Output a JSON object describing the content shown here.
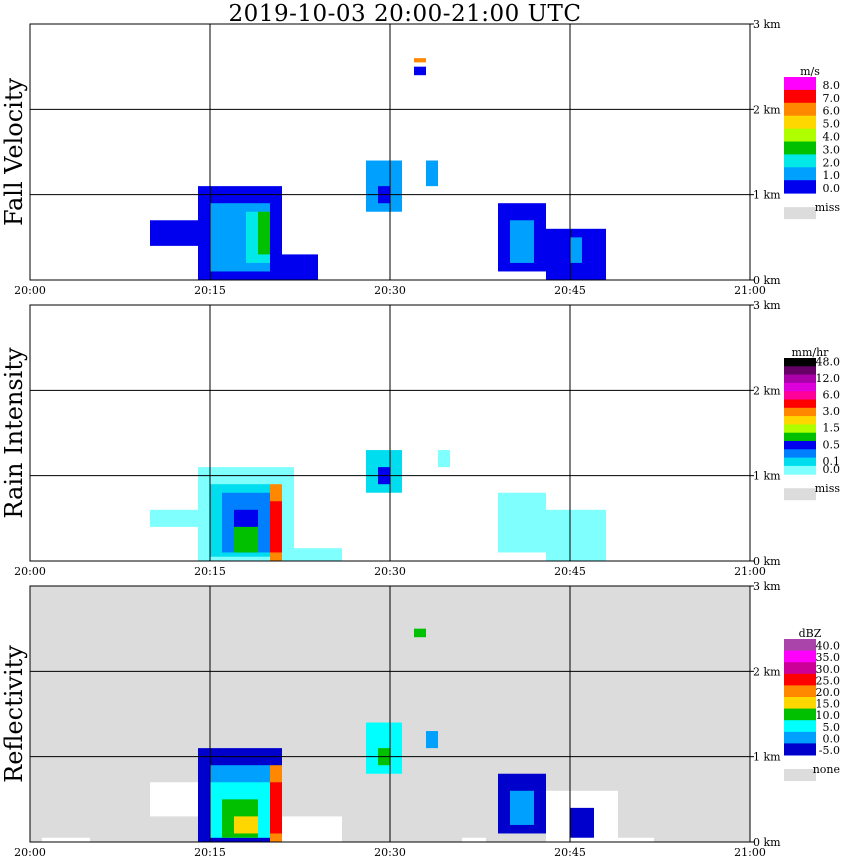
{
  "title": "2019-10-03   20:00-21:00 UTC",
  "colors": {
    "frame": "#000000",
    "missing_fill": "#dcdcdc"
  },
  "chart_data": [
    {
      "type": "heatmap",
      "ylabel": "Fall Velocity",
      "x_ticks": [
        "20:00",
        "20:15",
        "20:30",
        "20:45",
        "21:00"
      ],
      "y_ticks": [
        "0 km",
        "1 km",
        "2 km",
        "3 km"
      ],
      "xlim": [
        "20:00",
        "21:00"
      ],
      "ylim_km": [
        0,
        3.0
      ],
      "grid": true,
      "background": "#ffffff",
      "legend": {
        "unit": "m/s",
        "labels": [
          "8.0",
          "7.0",
          "6.0",
          "5.0",
          "4.0",
          "3.0",
          "2.0",
          "1.0",
          "0.0"
        ],
        "colors": [
          "#ff00ff",
          "#ff0000",
          "#ff8800",
          "#ffd700",
          "#b0ff00",
          "#00c000",
          "#00e8e8",
          "#00a0ff",
          "#0000ee"
        ],
        "missing_label": "miss"
      },
      "echoes": [
        {
          "x0": "20:10",
          "x1": "20:14",
          "y0": 0.4,
          "y1": 0.7,
          "color": "#0000ee"
        },
        {
          "x0": "20:14",
          "x1": "20:21",
          "y0": 0.0,
          "y1": 1.1,
          "color": "#0000ee"
        },
        {
          "x0": "20:15",
          "x1": "20:20",
          "y0": 0.1,
          "y1": 0.9,
          "color": "#00a0ff"
        },
        {
          "x0": "20:18",
          "x1": "20:20",
          "y0": 0.2,
          "y1": 0.8,
          "color": "#00e8e8"
        },
        {
          "x0": "20:19",
          "x1": "20:20",
          "y0": 0.3,
          "y1": 0.8,
          "color": "#00c000"
        },
        {
          "x0": "20:21",
          "x1": "20:24",
          "y0": 0.0,
          "y1": 0.3,
          "color": "#0000ee"
        },
        {
          "x0": "20:28",
          "x1": "20:31",
          "y0": 0.8,
          "y1": 1.4,
          "color": "#00a0ff"
        },
        {
          "x0": "20:29",
          "x1": "20:30",
          "y0": 0.9,
          "y1": 1.1,
          "color": "#0000ee"
        },
        {
          "x0": "20:33",
          "x1": "20:34",
          "y0": 1.1,
          "y1": 1.4,
          "color": "#00a0ff"
        },
        {
          "x0": "20:32",
          "x1": "20:33",
          "y0": 2.4,
          "y1": 2.5,
          "color": "#0000ee"
        },
        {
          "x0": "20:32",
          "x1": "20:33",
          "y0": 2.55,
          "y1": 2.6,
          "color": "#ff8800"
        },
        {
          "x0": "20:39",
          "x1": "20:43",
          "y0": 0.1,
          "y1": 0.9,
          "color": "#0000ee"
        },
        {
          "x0": "20:40",
          "x1": "20:42",
          "y0": 0.2,
          "y1": 0.7,
          "color": "#00a0ff"
        },
        {
          "x0": "20:43",
          "x1": "20:48",
          "y0": 0.0,
          "y1": 0.6,
          "color": "#0000ee"
        },
        {
          "x0": "20:45",
          "x1": "20:46",
          "y0": 0.2,
          "y1": 0.5,
          "color": "#00a0ff"
        }
      ]
    },
    {
      "type": "heatmap",
      "ylabel": "Rain Intensity",
      "x_ticks": [
        "20:00",
        "20:15",
        "20:30",
        "20:45",
        "21:00"
      ],
      "y_ticks": [
        "0 km",
        "1 km",
        "2 km",
        "3 km"
      ],
      "xlim": [
        "20:00",
        "21:00"
      ],
      "ylim_km": [
        0,
        3.0
      ],
      "grid": true,
      "background": "#ffffff",
      "legend": {
        "unit": "mm/hr",
        "labels": [
          "48.0",
          "",
          "12.0",
          "",
          "6.0",
          "",
          "3.0",
          "",
          "1.5",
          "",
          "0.5",
          "",
          "0.1",
          "0.0"
        ],
        "colors": [
          "#000000",
          "#660066",
          "#aa00aa",
          "#dd00dd",
          "#ff0099",
          "#ff0000",
          "#ff8800",
          "#ffd700",
          "#b0ff00",
          "#00c000",
          "#0000ee",
          "#0080ff",
          "#00ddee",
          "#80ffff"
        ],
        "missing_label": "miss"
      },
      "echoes": [
        {
          "x0": "20:10",
          "x1": "20:14",
          "y0": 0.4,
          "y1": 0.6,
          "color": "#80ffff"
        },
        {
          "x0": "20:14",
          "x1": "20:22",
          "y0": 0.0,
          "y1": 1.1,
          "color": "#80ffff"
        },
        {
          "x0": "20:15",
          "x1": "20:20",
          "y0": 0.05,
          "y1": 0.9,
          "color": "#00ddee"
        },
        {
          "x0": "20:16",
          "x1": "20:20",
          "y0": 0.1,
          "y1": 0.8,
          "color": "#0080ff"
        },
        {
          "x0": "20:17",
          "x1": "20:19",
          "y0": 0.1,
          "y1": 0.6,
          "color": "#0000ee"
        },
        {
          "x0": "20:17",
          "x1": "20:19",
          "y0": 0.1,
          "y1": 0.4,
          "color": "#00c000"
        },
        {
          "x0": "20:20",
          "x1": "20:21",
          "y0": 0.0,
          "y1": 0.9,
          "color": "#ff8800"
        },
        {
          "x0": "20:20",
          "x1": "20:21",
          "y0": 0.1,
          "y1": 0.7,
          "color": "#ff0000"
        },
        {
          "x0": "20:21",
          "x1": "20:26",
          "y0": 0.0,
          "y1": 0.15,
          "color": "#80ffff"
        },
        {
          "x0": "20:28",
          "x1": "20:31",
          "y0": 0.8,
          "y1": 1.3,
          "color": "#00ddee"
        },
        {
          "x0": "20:29",
          "x1": "20:30",
          "y0": 0.9,
          "y1": 1.1,
          "color": "#0000ee"
        },
        {
          "x0": "20:34",
          "x1": "20:35",
          "y0": 1.1,
          "y1": 1.3,
          "color": "#80ffff"
        },
        {
          "x0": "20:39",
          "x1": "20:43",
          "y0": 0.1,
          "y1": 0.8,
          "color": "#80ffff"
        },
        {
          "x0": "20:43",
          "x1": "20:48",
          "y0": 0.0,
          "y1": 0.6,
          "color": "#80ffff"
        }
      ]
    },
    {
      "type": "heatmap",
      "ylabel": "Reflectivity",
      "x_ticks": [
        "20:00",
        "20:15",
        "20:30",
        "20:45",
        "21:00"
      ],
      "y_ticks": [
        "0 km",
        "1 km",
        "2 km",
        "3 km"
      ],
      "xlim": [
        "20:00",
        "21:00"
      ],
      "ylim_km": [
        0,
        3.0
      ],
      "grid": true,
      "background": "#dcdcdc",
      "legend": {
        "unit": "dBZ",
        "labels": [
          "40.0",
          "35.0",
          "30.0",
          "25.0",
          "20.0",
          "15.0",
          "10.0",
          "5.0",
          "0.0",
          "-5.0"
        ],
        "colors": [
          "#aa44aa",
          "#ff00ff",
          "#cc0099",
          "#ff0000",
          "#ff8800",
          "#ffd700",
          "#00c000",
          "#00ffff",
          "#00a0ff",
          "#0000cc"
        ],
        "missing_label": "none"
      },
      "echoes": [
        {
          "x0": "20:01",
          "x1": "20:05",
          "y0": 0.0,
          "y1": 0.05,
          "color": "#ffffff"
        },
        {
          "x0": "20:10",
          "x1": "20:14",
          "y0": 0.3,
          "y1": 0.7,
          "color": "#ffffff"
        },
        {
          "x0": "20:14",
          "x1": "20:21",
          "y0": 0.0,
          "y1": 1.1,
          "color": "#0000cc"
        },
        {
          "x0": "20:15",
          "x1": "20:20",
          "y0": 0.05,
          "y1": 0.9,
          "color": "#00a0ff"
        },
        {
          "x0": "20:15",
          "x1": "20:20",
          "y0": 0.05,
          "y1": 0.7,
          "color": "#00ffff"
        },
        {
          "x0": "20:16",
          "x1": "20:19",
          "y0": 0.05,
          "y1": 0.5,
          "color": "#00c000"
        },
        {
          "x0": "20:17",
          "x1": "20:19",
          "y0": 0.1,
          "y1": 0.3,
          "color": "#ffd700"
        },
        {
          "x0": "20:20",
          "x1": "20:21",
          "y0": 0.0,
          "y1": 0.9,
          "color": "#ff8800"
        },
        {
          "x0": "20:20",
          "x1": "20:21",
          "y0": 0.1,
          "y1": 0.7,
          "color": "#ff0000"
        },
        {
          "x0": "20:21",
          "x1": "20:26",
          "y0": 0.0,
          "y1": 0.3,
          "color": "#ffffff"
        },
        {
          "x0": "20:28",
          "x1": "20:31",
          "y0": 0.8,
          "y1": 1.4,
          "color": "#00ffff"
        },
        {
          "x0": "20:29",
          "x1": "20:30",
          "y0": 0.9,
          "y1": 1.1,
          "color": "#00c000"
        },
        {
          "x0": "20:33",
          "x1": "20:34",
          "y0": 1.1,
          "y1": 1.3,
          "color": "#00a0ff"
        },
        {
          "x0": "20:32",
          "x1": "20:33",
          "y0": 2.4,
          "y1": 2.5,
          "color": "#00c000"
        },
        {
          "x0": "20:36",
          "x1": "20:38",
          "y0": 0.0,
          "y1": 0.05,
          "color": "#ffffff"
        },
        {
          "x0": "20:39",
          "x1": "20:43",
          "y0": 0.1,
          "y1": 0.8,
          "color": "#0000cc"
        },
        {
          "x0": "20:40",
          "x1": "20:42",
          "y0": 0.2,
          "y1": 0.6,
          "color": "#00a0ff"
        },
        {
          "x0": "20:43",
          "x1": "20:49",
          "y0": 0.0,
          "y1": 0.6,
          "color": "#ffffff"
        },
        {
          "x0": "20:45",
          "x1": "20:47",
          "y0": 0.05,
          "y1": 0.4,
          "color": "#0000cc"
        },
        {
          "x0": "20:48",
          "x1": "20:52",
          "y0": 0.0,
          "y1": 0.05,
          "color": "#ffffff"
        }
      ]
    }
  ]
}
